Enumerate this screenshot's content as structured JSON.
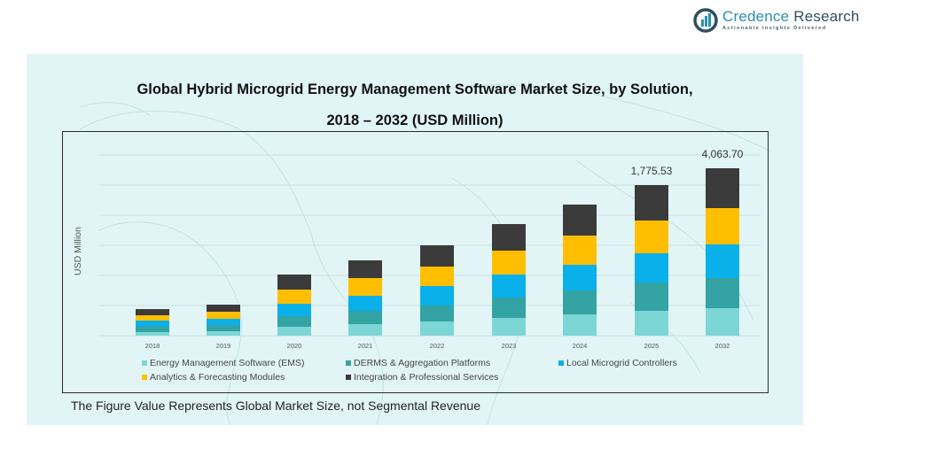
{
  "brand": {
    "name_part1": "Credence",
    "name_part2": " Research",
    "tagline": "Actionable Insights Delivered"
  },
  "footnote": "The Figure Value Represents Global Market Size, not Segmental Revenue",
  "chart_data": {
    "type": "bar",
    "stacked": true,
    "title": "Global Hybrid Microgrid Energy Management Software Market Size, by Solution,",
    "subtitle": "2018 – 2032 (USD Million)",
    "xlabel": "",
    "ylabel": "USD Million",
    "grid": true,
    "legend_position": "bottom",
    "categories": [
      "2018",
      "2019",
      "2020",
      "2021",
      "2022",
      "2023",
      "2024",
      "2025",
      "2032"
    ],
    "series": [
      {
        "name": "Energy Management Software (EMS)",
        "color": "#7dd6d6"
      },
      {
        "name": "DERMS & Aggregation Platforms",
        "color": "#33a3a3"
      },
      {
        "name": "Local Microgrid Controllers",
        "color": "#0ab0ea"
      },
      {
        "name": "Analytics & Forecasting Modules",
        "color": "#ffbf00"
      },
      {
        "name": "Integration & Professional Services",
        "color": "#3b3b3b"
      }
    ],
    "data_labels": [
      {
        "category": "2025",
        "text": "1,775.53",
        "value": 1775.53
      },
      {
        "category": "2032",
        "text": "4,063.70",
        "value": 4063.7
      }
    ],
    "notes": "Only the 2025 and 2032 totals are printed on the figure. Segment values and the other years' totals are not labeled, and the visible bar heights are not drawn on a consistent scale."
  }
}
